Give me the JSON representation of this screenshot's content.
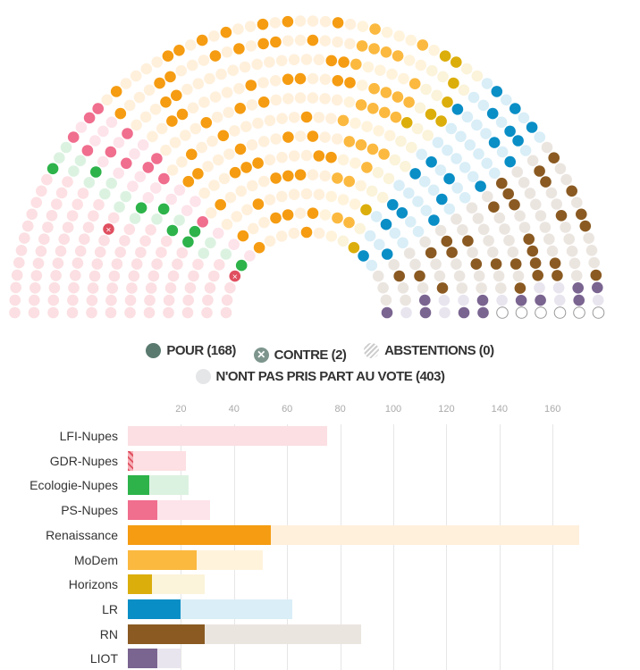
{
  "legend": {
    "pour": "POUR (168)",
    "contre": "CONTRE (2)",
    "abstentions": "ABSTENTIONS (0)",
    "absent": "N'ONT PAS PRIS PART AU VOTE (403)"
  },
  "colors": {
    "pour_legend": "#5a7a70",
    "contre_legend": "#7d958d",
    "absent_legend": "#e4e6e8"
  },
  "chart_data": {
    "type": "bar",
    "title": "",
    "xlabel": "",
    "ylabel": "",
    "xlim": [
      0,
      170
    ],
    "ticks": [
      20,
      40,
      60,
      80,
      100,
      120,
      140,
      160
    ],
    "categories": [
      "LFI-Nupes",
      "GDR-Nupes",
      "Ecologie-Nupes",
      "PS-Nupes",
      "Renaissance",
      "MoDem",
      "Horizons",
      "LR",
      "RN",
      "LIOT"
    ],
    "series": [
      {
        "name": "Pour",
        "values": [
          0,
          0,
          8,
          11,
          54,
          26,
          9,
          20,
          29,
          11
        ]
      },
      {
        "name": "Contre",
        "values": [
          0,
          2,
          0,
          0,
          0,
          0,
          0,
          0,
          0,
          0
        ]
      },
      {
        "name": "Total",
        "values": [
          75,
          22,
          23,
          31,
          170,
          51,
          29,
          62,
          88,
          20
        ]
      }
    ],
    "group_colors": [
      "#e8a0a8",
      "#e05060",
      "#2db34a",
      "#f06e8e",
      "#f59c12",
      "#fbb940",
      "#dcae0c",
      "#0a8ec6",
      "#8a5a22",
      "#7a6490"
    ],
    "group_light": [
      "#fbdfe2",
      "#fde0e3",
      "#dcf2e1",
      "#fde3ea",
      "#fff0dc",
      "#fff3dc",
      "#fbf3da",
      "#d9eef7",
      "#ebe5e0",
      "#e9e5ef"
    ],
    "non_inscrits": 6
  }
}
